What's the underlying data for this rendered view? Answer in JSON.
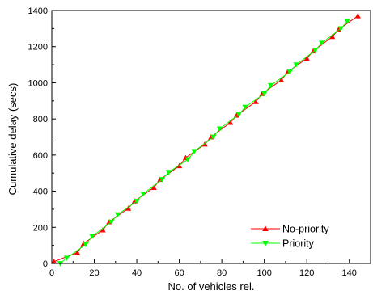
{
  "chart_data": {
    "type": "line",
    "title": "",
    "xlabel": "No. of vehicles rel.",
    "ylabel": "Cumulative delay (secs)",
    "xlim": [
      0,
      150
    ],
    "ylim": [
      0,
      1400
    ],
    "x_ticks": [
      0,
      20,
      40,
      60,
      80,
      100,
      120,
      140
    ],
    "y_ticks": [
      0,
      200,
      400,
      600,
      800,
      1000,
      1200,
      1400
    ],
    "grid": false,
    "legend_position": "bottom-right",
    "series": [
      {
        "name": "No-priority",
        "color": "#ff0000",
        "marker": "triangle-up",
        "x": [
          1,
          12,
          15,
          24,
          27,
          36,
          39,
          48,
          51,
          60,
          63,
          72,
          75,
          84,
          87,
          96,
          99,
          108,
          111,
          120,
          123,
          132,
          135,
          144
        ],
        "y": [
          10,
          60,
          110,
          185,
          230,
          305,
          345,
          420,
          465,
          540,
          585,
          660,
          700,
          780,
          820,
          895,
          940,
          1015,
          1060,
          1135,
          1175,
          1255,
          1295,
          1370
        ]
      },
      {
        "name": "Priority",
        "color": "#00ff00",
        "marker": "triangle-down",
        "x": [
          4,
          7,
          16,
          19,
          28,
          31,
          40,
          43,
          52,
          55,
          64,
          67,
          76,
          79,
          88,
          91,
          100,
          103,
          112,
          115,
          124,
          127,
          136,
          139
        ],
        "y": [
          0,
          30,
          105,
          150,
          230,
          270,
          345,
          385,
          465,
          505,
          575,
          620,
          700,
          745,
          825,
          865,
          940,
          985,
          1060,
          1100,
          1180,
          1220,
          1300,
          1340
        ]
      }
    ]
  }
}
